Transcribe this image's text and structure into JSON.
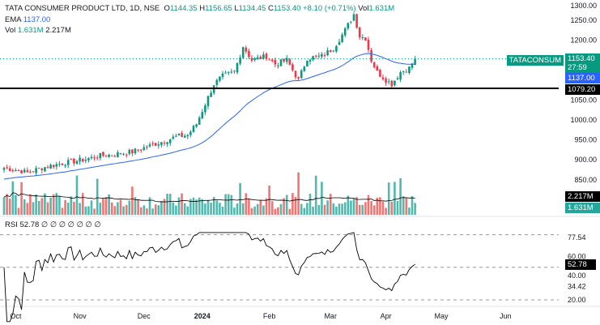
{
  "legend": {
    "symbol": "TATA CONSUMER PRODUCT LTD, 1D, NSE",
    "open_label": "O",
    "open": "1144.35",
    "high_label": "H",
    "high": "1156.65",
    "low_label": "L",
    "low": "1134.45",
    "close_label": "C",
    "close": "1153.40",
    "change": "+8.10 (+0.71%)",
    "vol_inline_label": "Vol",
    "vol_inline": "1.631M",
    "ema_label": "EMA",
    "ema": "1137.00",
    "vol_label": "Vol",
    "vol": "1.631M",
    "vol_ma": "2.217M",
    "rsi_label": "RSI",
    "rsi": "52.78",
    "rsi_rest": "∅ ∅ ∅ ∅ ∅ ∅ ∅"
  },
  "tags": {
    "ticker": "TATACONSUM",
    "price": "1153.40",
    "countdown": "27:59",
    "ema": "1137.00",
    "hline": "1079.20",
    "vol_ma": "2.217M",
    "vol": "1.631M",
    "rsi": "52.78"
  },
  "colors": {
    "up": "#089981",
    "down": "#f23645",
    "ema": "#2962ff",
    "up_vol": "#26a69a",
    "down_vol": "#ef5350"
  },
  "chart_data": {
    "type": "candlestick",
    "price_ticks": [
      "1300.00",
      "1250.00",
      "1200.00",
      "1050.00",
      "1000.00",
      "950.00",
      "900.00",
      "850.00"
    ],
    "price_tick_values": [
      1300,
      1250,
      1200,
      1050,
      1000,
      950,
      900,
      850
    ],
    "rsi_ticks": [
      "77.54",
      "60.00",
      "40.00",
      "34.42",
      "20.00"
    ],
    "rsi_tick_values": [
      77.54,
      60,
      40,
      34.42,
      20
    ],
    "x_labels": [
      "Oct",
      "Nov",
      "Dec",
      "2024",
      "Feb",
      "Mar",
      "Apr",
      "May",
      "Jun"
    ],
    "x_label_days": [
      4,
      26,
      48,
      68,
      91,
      112,
      131,
      150,
      172
    ],
    "horizontal_line": 1079.2,
    "close_waypoints": [
      [
        0,
        880
      ],
      [
        4,
        875
      ],
      [
        8,
        868
      ],
      [
        13,
        880
      ],
      [
        19,
        890
      ],
      [
        27,
        900
      ],
      [
        33,
        910
      ],
      [
        39,
        915
      ],
      [
        44,
        920
      ],
      [
        50,
        935
      ],
      [
        54,
        945
      ],
      [
        59,
        958
      ],
      [
        63,
        962
      ],
      [
        66,
        990
      ],
      [
        69,
        1040
      ],
      [
        72,
        1090
      ],
      [
        75,
        1110
      ],
      [
        79,
        1120
      ],
      [
        82,
        1185
      ],
      [
        85,
        1150
      ],
      [
        90,
        1160
      ],
      [
        93,
        1140
      ],
      [
        97,
        1150
      ],
      [
        101,
        1100
      ],
      [
        104,
        1155
      ],
      [
        109,
        1160
      ],
      [
        113,
        1180
      ],
      [
        117,
        1225
      ],
      [
        120,
        1265
      ],
      [
        122,
        1210
      ],
      [
        124,
        1205
      ],
      [
        126,
        1150
      ],
      [
        128,
        1120
      ],
      [
        131,
        1100
      ],
      [
        133,
        1090
      ],
      [
        136,
        1120
      ],
      [
        139,
        1130
      ],
      [
        141,
        1153.4
      ]
    ]
  }
}
